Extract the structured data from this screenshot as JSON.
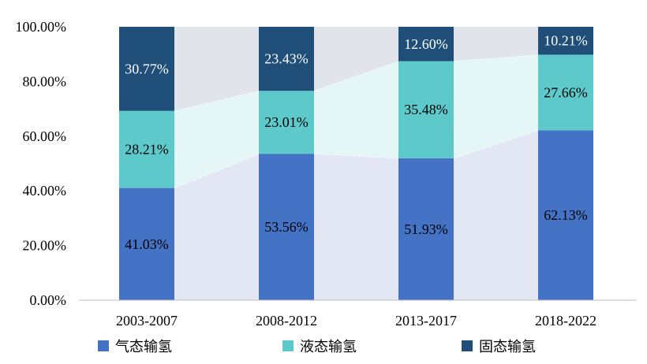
{
  "chart_data": {
    "type": "bar",
    "stacked": true,
    "categories": [
      "2003-2007",
      "2008-2012",
      "2013-2017",
      "2018-2022"
    ],
    "series": [
      {
        "name": "气态输氢",
        "color": "#4472C4",
        "label_color": "#000000",
        "values": [
          41.03,
          53.56,
          51.93,
          62.13
        ],
        "labels": [
          "41.03%",
          "53.56%",
          "51.93%",
          "62.13%"
        ]
      },
      {
        "name": "液态输氢",
        "color": "#5EC9CB",
        "label_color": "#000000",
        "values": [
          28.21,
          23.01,
          35.48,
          27.66
        ],
        "labels": [
          "28.21%",
          "23.01%",
          "35.48%",
          "27.66%"
        ]
      },
      {
        "name": "固态输氢",
        "color": "#1F4E79",
        "label_color": "#FFFFFF",
        "values": [
          30.77,
          23.43,
          12.6,
          10.21
        ],
        "labels": [
          "30.77%",
          "23.43%",
          "12.60%",
          "10.21%"
        ]
      }
    ],
    "ylim": [
      0,
      100
    ],
    "yticks": [
      0,
      20,
      40,
      60,
      80,
      100
    ],
    "ytick_labels": [
      "0.00%",
      "20.00%",
      "40.00%",
      "60.00%",
      "80.00%",
      "100.00%"
    ],
    "legend_position": "bottom",
    "connector_fill_colors": [
      "#E3E7F3",
      "#E5F6F7",
      "#E1E5EB"
    ]
  }
}
